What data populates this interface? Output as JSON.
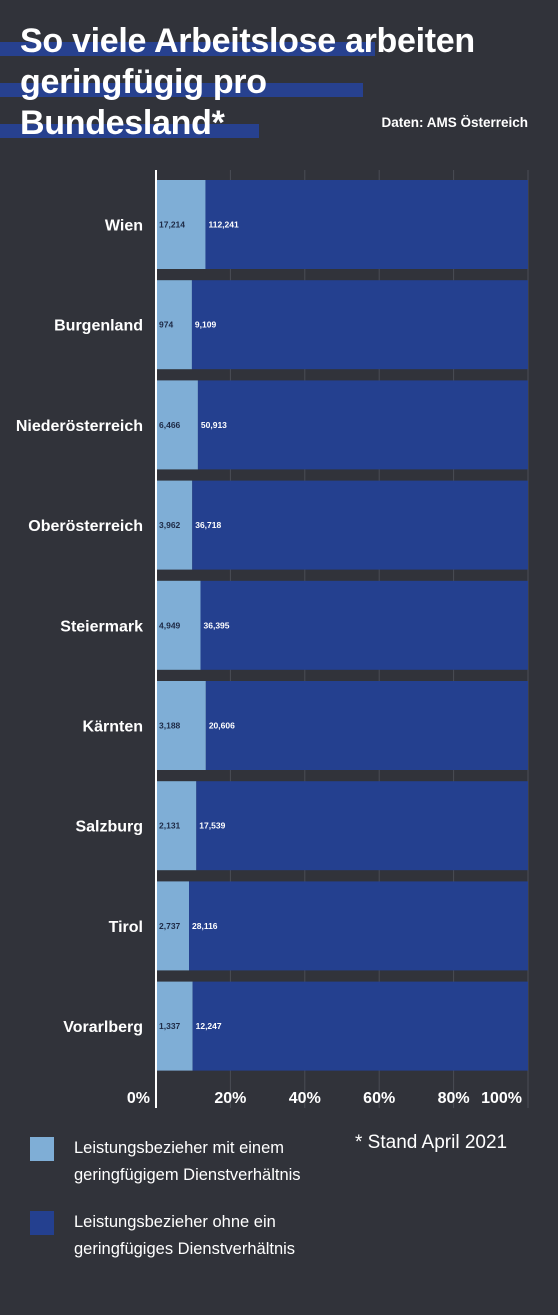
{
  "header": {
    "title_lines": [
      "So viele Arbeitslose arbeiten",
      "geringfügig pro",
      "Bundesland*"
    ],
    "source": "Daten: AMS Österreich"
  },
  "colors": {
    "background": "#31333a",
    "series_light": "#7faed6",
    "series_dark": "#24408f",
    "highlight": "#27418f"
  },
  "chart_data": {
    "type": "bar",
    "orientation": "horizontal",
    "stacked": "percent",
    "title": "So viele Arbeitslose arbeiten geringfügig pro Bundesland*",
    "categories": [
      "Wien",
      "Burgenland",
      "Niederösterreich",
      "Oberösterreich",
      "Steiermark",
      "Kärnten",
      "Salzburg",
      "Tirol",
      "Vorarlberg"
    ],
    "series": [
      {
        "name": "Leistungsbezieher mit einem geringfügigem Dienstverhältnis",
        "values": [
          17214,
          974,
          6466,
          3962,
          4949,
          3188,
          2131,
          2737,
          1337
        ],
        "labels": [
          "17,214",
          "974",
          "6,466",
          "3,962",
          "4,949",
          "3,188",
          "2,131",
          "2,737",
          "1,337"
        ],
        "color": "#7faed6"
      },
      {
        "name": "Leistungsbezieher ohne ein geringfügiges Dienstverhältnis",
        "values": [
          112241,
          9109,
          50913,
          36718,
          36395,
          20606,
          17539,
          28116,
          12247
        ],
        "labels": [
          "112,241",
          "9,109",
          "50,913",
          "36,718",
          "36,395",
          "20,606",
          "17,539",
          "28,116",
          "12,247"
        ],
        "color": "#24408f"
      }
    ],
    "xticks": [
      "0%",
      "20%",
      "40%",
      "60%",
      "80%",
      "100%"
    ],
    "xlim": [
      0,
      100
    ],
    "grid": true,
    "legend_position": "bottom"
  },
  "legend": {
    "items": [
      {
        "lines": [
          "Leistungsbezieher mit einem",
          "geringfügigem Dienstverhältnis"
        ],
        "color": "#7faed6"
      },
      {
        "lines": [
          "Leistungsbezieher ohne ein",
          "geringfügiges Dienstverhältnis"
        ],
        "color": "#24408f"
      }
    ]
  },
  "footnote": "* Stand April 2021"
}
